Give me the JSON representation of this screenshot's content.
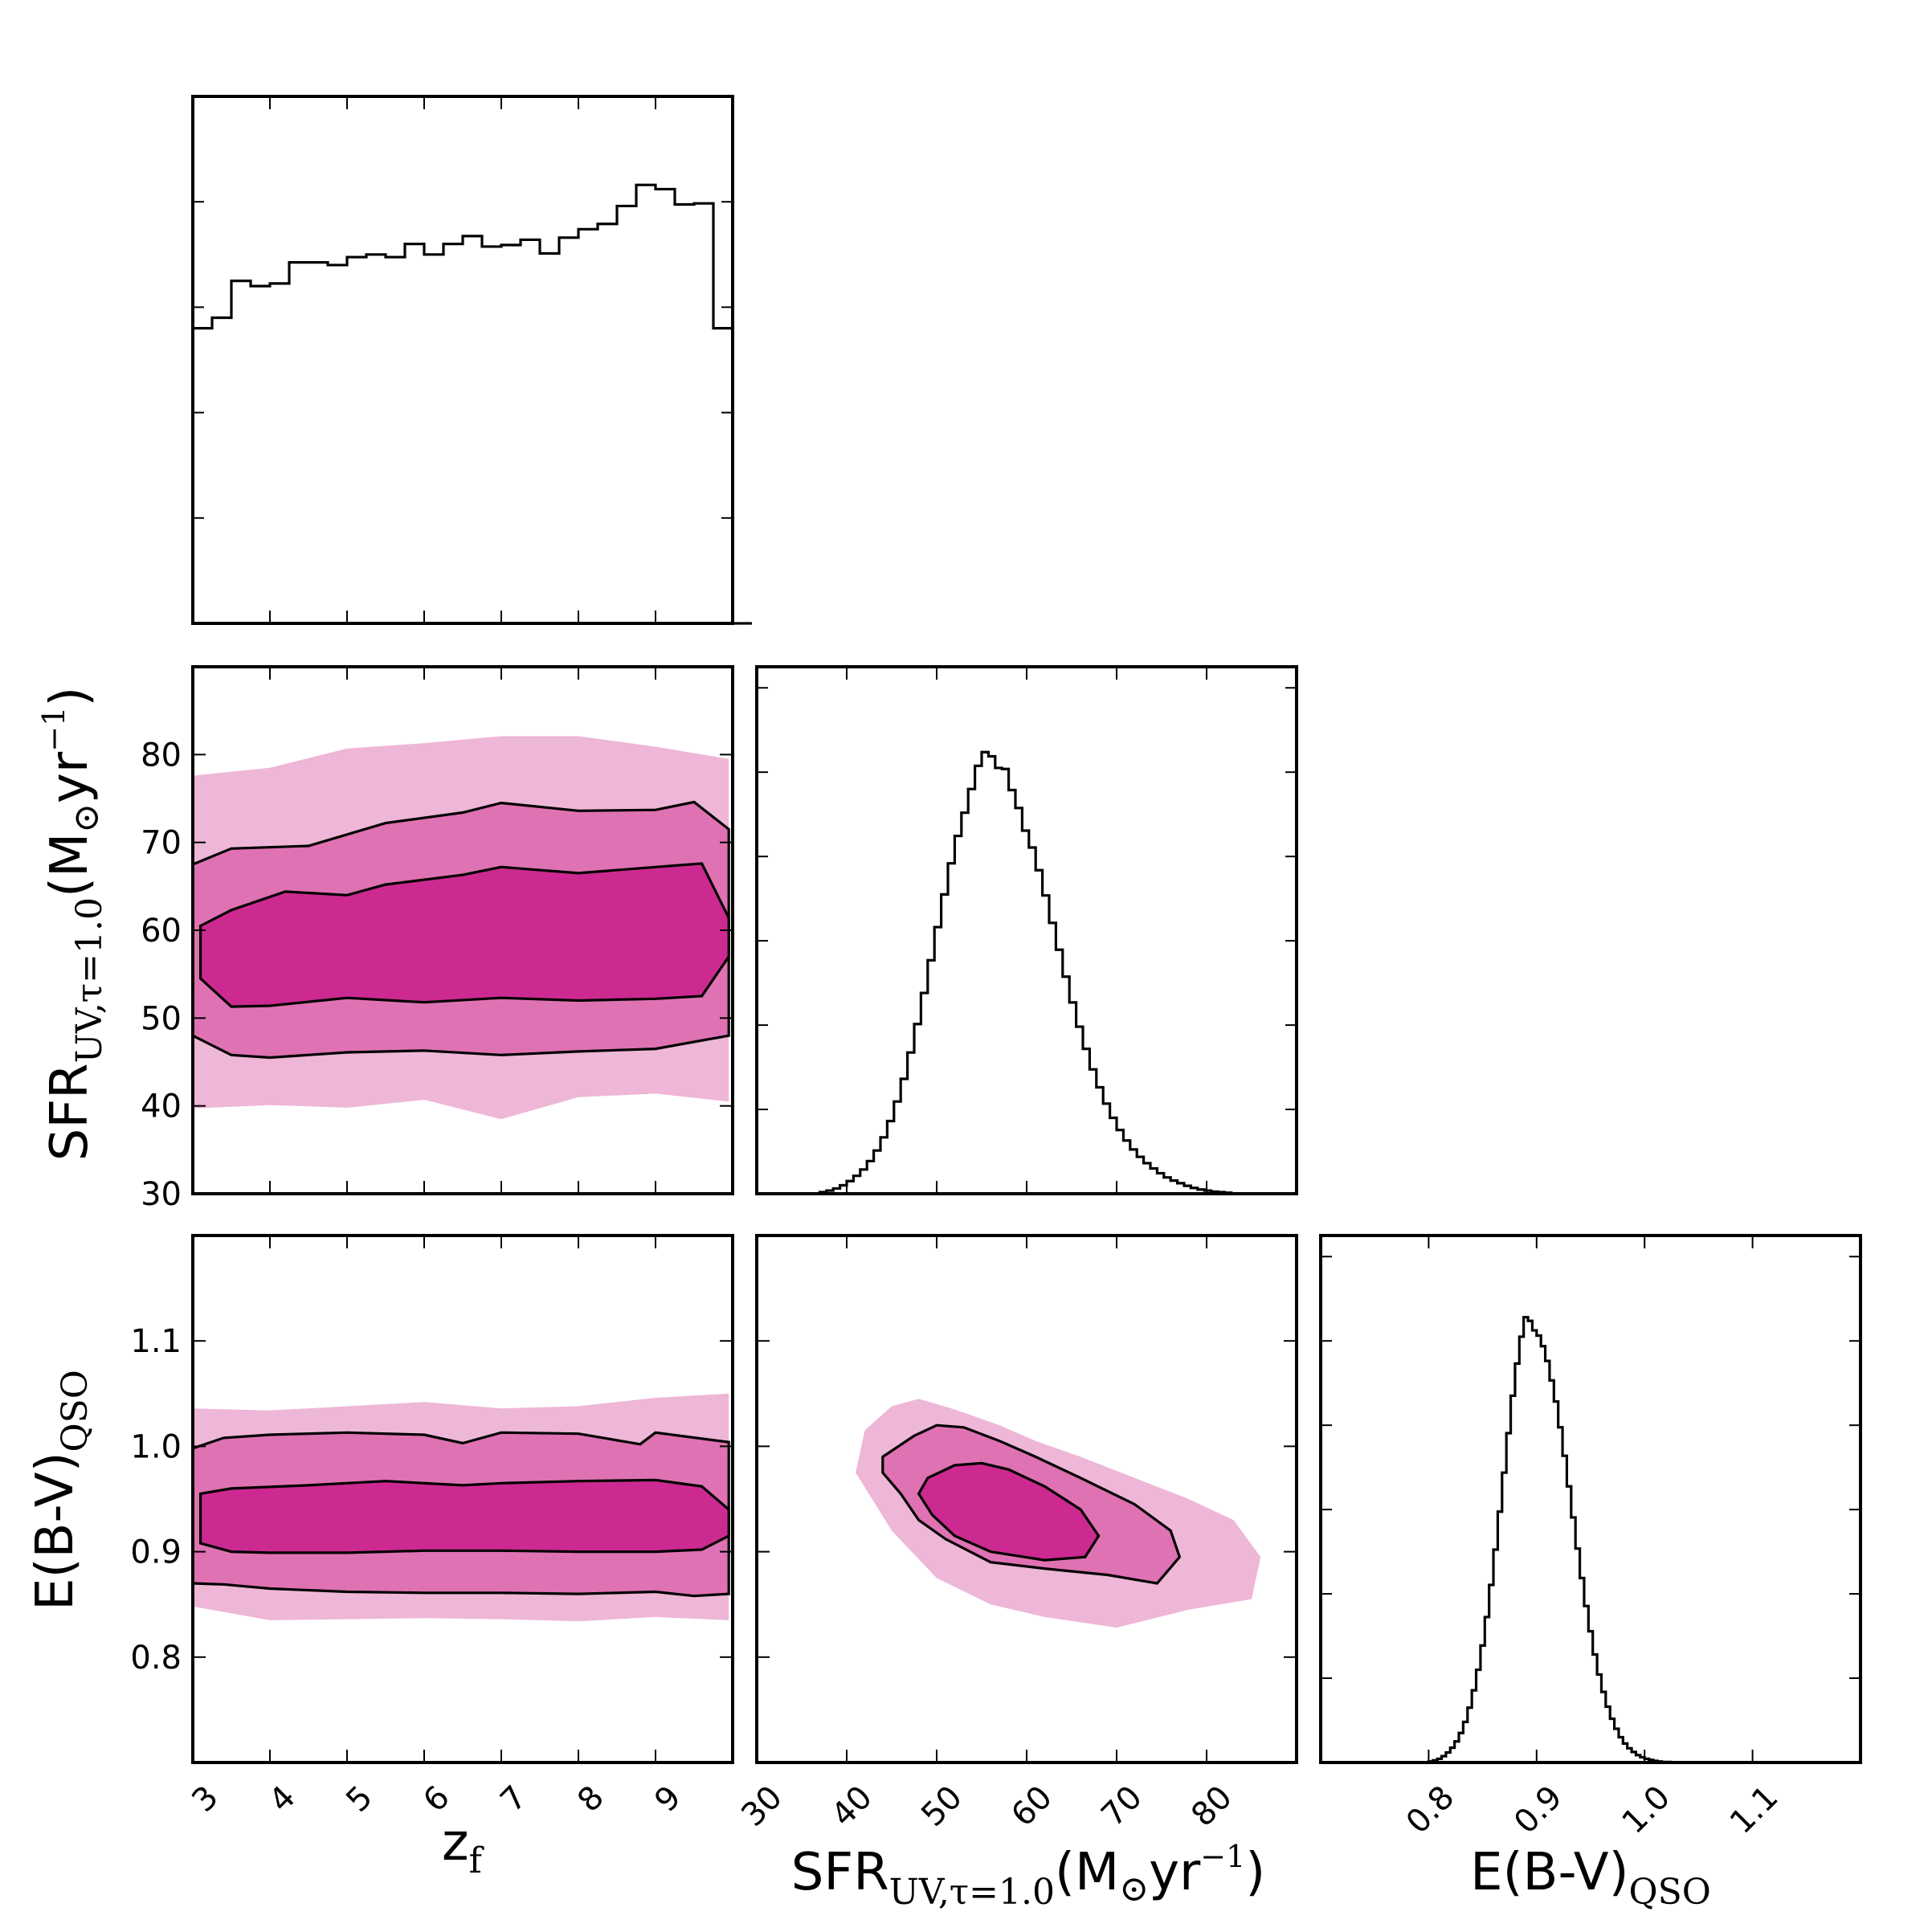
{
  "chart_data": {
    "type": "corner",
    "colors": {
      "level_1sigma": "#cc2a90",
      "level_2sigma": "#df72b2",
      "level_3sigma": "#eeb6d7",
      "line": "#000000"
    },
    "parameters": [
      {
        "key": "zf",
        "label_main": "z",
        "label_sub": "f",
        "label_sup": "",
        "label_tail": "",
        "range": [
          3,
          10
        ],
        "ticks": [
          3,
          4,
          5,
          6,
          7,
          8,
          9
        ],
        "tick_labels": [
          "3",
          "4",
          "5",
          "6",
          "7",
          "8",
          "9"
        ]
      },
      {
        "key": "sfr",
        "label_main": "SFR",
        "label_sub": "UV,τ=1.0",
        "label_mid": "(M",
        "label_sun": "⊙",
        "label_after_sun": "yr",
        "label_sup": "−1",
        "label_tail": ")",
        "range": [
          30,
          90
        ],
        "ticks": [
          30,
          40,
          50,
          60,
          70,
          80
        ],
        "tick_labels": [
          "30",
          "40",
          "50",
          "60",
          "70",
          "80"
        ]
      },
      {
        "key": "ebv",
        "label_main": "E(B-V)",
        "label_sub": "QSO",
        "label_sup": "",
        "label_tail": "",
        "range": [
          0.7,
          1.2
        ],
        "ticks": [
          0.8,
          0.9,
          1.0,
          1.1
        ],
        "tick_labels": [
          "0.8",
          "0.9",
          "1.0",
          "1.1"
        ]
      }
    ],
    "histograms": [
      {
        "param": "zf",
        "bin_width": 0.25,
        "x_start": 3.0,
        "y_max": 1.0,
        "y_ticks": [
          0.2,
          0.4,
          0.6,
          0.8,
          1.0
        ],
        "values": [
          0.56,
          0.58,
          0.65,
          0.64,
          0.645,
          0.685,
          0.685,
          0.68,
          0.695,
          0.7,
          0.695,
          0.72,
          0.7,
          0.72,
          0.735,
          0.715,
          0.718,
          0.728,
          0.702,
          0.732,
          0.748,
          0.758,
          0.792,
          0.832,
          0.824,
          0.795,
          0.797,
          0.56,
          0.0
        ]
      },
      {
        "param": "sfr",
        "bin_width": 0.75,
        "x_start": 37.0,
        "y_max": 1.0,
        "y_ticks": [
          0.16,
          0.32,
          0.48,
          0.64,
          0.8,
          0.96
        ],
        "values": [
          0.003,
          0.006,
          0.01,
          0.016,
          0.024,
          0.034,
          0.046,
          0.062,
          0.082,
          0.107,
          0.138,
          0.175,
          0.218,
          0.268,
          0.322,
          0.381,
          0.443,
          0.506,
          0.568,
          0.627,
          0.679,
          0.723,
          0.768,
          0.812,
          0.838,
          0.83,
          0.808,
          0.806,
          0.766,
          0.732,
          0.689,
          0.657,
          0.614,
          0.566,
          0.514,
          0.463,
          0.412,
          0.363,
          0.317,
          0.275,
          0.236,
          0.202,
          0.171,
          0.144,
          0.121,
          0.101,
          0.084,
          0.07,
          0.058,
          0.048,
          0.039,
          0.031,
          0.025,
          0.02,
          0.015,
          0.011,
          0.008,
          0.006,
          0.004,
          0.003,
          0.002
        ]
      },
      {
        "param": "ebv",
        "bin_width": 0.004,
        "x_start": 0.8,
        "y_max": 1.0,
        "y_ticks": [
          0.16,
          0.32,
          0.48,
          0.64,
          0.8,
          0.96
        ],
        "values": [
          0.002,
          0.004,
          0.007,
          0.012,
          0.019,
          0.028,
          0.04,
          0.056,
          0.077,
          0.104,
          0.137,
          0.176,
          0.222,
          0.276,
          0.337,
          0.404,
          0.476,
          0.55,
          0.625,
          0.696,
          0.757,
          0.808,
          0.845,
          0.838,
          0.82,
          0.81,
          0.79,
          0.762,
          0.725,
          0.685,
          0.636,
          0.582,
          0.524,
          0.465,
          0.406,
          0.35,
          0.297,
          0.249,
          0.205,
          0.167,
          0.134,
          0.106,
          0.083,
          0.064,
          0.048,
          0.036,
          0.027,
          0.02,
          0.014,
          0.01,
          0.007,
          0.005,
          0.003,
          0.002,
          0.001,
          0.001
        ]
      }
    ],
    "density_panels": [
      {
        "x": "zf",
        "y": "sfr",
        "levels": [
          {
            "name": "3sigma",
            "x": [
              3.0,
              4.0,
              5.0,
              6.0,
              7.0,
              8.0,
              9.0,
              9.95,
              9.95,
              9.0,
              8.0,
              7.0,
              6.0,
              5.0,
              4.0,
              3.0
            ],
            "y": [
              77.6,
              78.5,
              80.7,
              81.3,
              82.1,
              82.1,
              80.9,
              79.5,
              40.5,
              41.4,
              41.0,
              38.5,
              40.7,
              39.8,
              40.1,
              39.7
            ]
          },
          {
            "name": "2sigma",
            "x": [
              3.0,
              3.5,
              4.5,
              5.5,
              6.5,
              7.0,
              8.0,
              9.0,
              9.5,
              9.95,
              9.95,
              9.0,
              8.0,
              7.0,
              6.0,
              5.0,
              4.0,
              3.5,
              3.0
            ],
            "y": [
              67.5,
              69.3,
              69.6,
              72.2,
              73.4,
              74.5,
              73.6,
              73.7,
              74.6,
              71.5,
              48.0,
              46.5,
              46.2,
              45.8,
              46.3,
              46.1,
              45.5,
              45.8,
              48.0
            ]
          },
          {
            "name": "1sigma",
            "x": [
              3.1,
              3.5,
              4.2,
              5.0,
              5.5,
              6.5,
              7.0,
              8.0,
              9.0,
              9.6,
              9.95,
              9.95,
              9.6,
              9.0,
              8.0,
              7.0,
              6.0,
              5.0,
              4.0,
              3.5,
              3.1
            ],
            "y": [
              60.5,
              62.3,
              64.4,
              64.0,
              65.2,
              66.3,
              67.2,
              66.5,
              67.2,
              67.6,
              61.4,
              57.0,
              52.5,
              52.2,
              52.0,
              52.3,
              51.8,
              52.3,
              51.4,
              51.3,
              54.5
            ]
          }
        ]
      },
      {
        "x": "zf",
        "y": "ebv",
        "levels": [
          {
            "name": "3sigma",
            "x": [
              3.0,
              4.0,
              5.0,
              6.0,
              7.0,
              8.0,
              9.0,
              9.95,
              9.95,
              9.0,
              8.0,
              7.0,
              6.0,
              5.0,
              4.0,
              3.0
            ],
            "y": [
              1.036,
              1.034,
              1.038,
              1.042,
              1.036,
              1.038,
              1.046,
              1.05,
              0.835,
              0.838,
              0.834,
              0.836,
              0.837,
              0.836,
              0.835,
              0.848
            ]
          },
          {
            "name": "2sigma",
            "x": [
              3.0,
              3.4,
              4.0,
              5.0,
              6.0,
              6.5,
              7.0,
              8.0,
              8.8,
              9.0,
              9.95,
              9.95,
              9.5,
              9.0,
              8.0,
              7.0,
              6.0,
              5.0,
              4.0,
              3.4,
              3.0
            ],
            "y": [
              0.998,
              1.008,
              1.011,
              1.013,
              1.011,
              1.003,
              1.013,
              1.012,
              1.002,
              1.013,
              1.004,
              0.86,
              0.858,
              0.862,
              0.86,
              0.861,
              0.861,
              0.862,
              0.865,
              0.869,
              0.87
            ]
          },
          {
            "name": "1sigma",
            "x": [
              3.1,
              3.5,
              4.5,
              5.5,
              6.5,
              7.0,
              8.0,
              9.0,
              9.6,
              9.95,
              9.95,
              9.6,
              9.0,
              8.0,
              7.0,
              6.0,
              5.0,
              4.0,
              3.5,
              3.1
            ],
            "y": [
              0.955,
              0.96,
              0.963,
              0.967,
              0.963,
              0.965,
              0.967,
              0.968,
              0.962,
              0.94,
              0.915,
              0.902,
              0.9,
              0.9,
              0.901,
              0.901,
              0.899,
              0.899,
              0.9,
              0.908
            ]
          }
        ]
      },
      {
        "x": "sfr",
        "y": "ebv",
        "levels": [
          {
            "name": "3sigma",
            "x": [
              42.0,
              45.0,
              48.0,
              52.0,
              57.0,
              61.0,
              66.0,
              72.0,
              78.0,
              83.0,
              86.0,
              85.0,
              78.0,
              70.0,
              62.0,
              56.0,
              50.0,
              45.0,
              41.0
            ],
            "y": [
              1.015,
              1.038,
              1.045,
              1.035,
              1.02,
              1.005,
              0.99,
              0.97,
              0.95,
              0.93,
              0.895,
              0.855,
              0.845,
              0.828,
              0.838,
              0.85,
              0.875,
              0.92,
              0.975
            ]
          },
          {
            "name": "2sigma",
            "x": [
              44.0,
              47.5,
              50.0,
              53.0,
              57.0,
              61.0,
              66.0,
              72.0,
              76.0,
              77.0,
              74.5,
              69.0,
              62.0,
              56.0,
              51.0,
              48.0,
              46.0,
              44.0
            ],
            "y": [
              0.99,
              1.01,
              1.02,
              1.018,
              1.005,
              0.99,
              0.97,
              0.945,
              0.92,
              0.895,
              0.87,
              0.878,
              0.884,
              0.89,
              0.912,
              0.93,
              0.955,
              0.975
            ]
          },
          {
            "name": "1sigma",
            "x": [
              49.0,
              52.0,
              55.0,
              58.0,
              62.0,
              66.0,
              68.0,
              66.5,
              62.0,
              56.0,
              52.0,
              49.5,
              48.0
            ],
            "y": [
              0.97,
              0.982,
              0.984,
              0.978,
              0.962,
              0.94,
              0.915,
              0.895,
              0.892,
              0.9,
              0.915,
              0.935,
              0.955
            ]
          }
        ]
      }
    ]
  }
}
